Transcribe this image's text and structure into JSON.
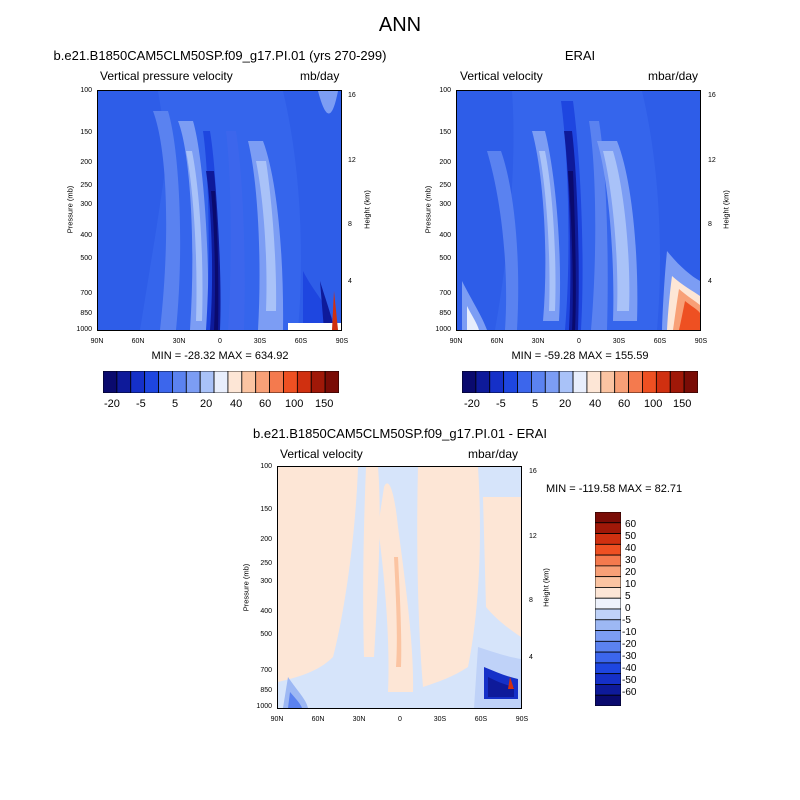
{
  "page": {
    "title": "ANN"
  },
  "colors": {
    "left_palette": [
      "#0a0a6e",
      "#0e1a9a",
      "#1530c8",
      "#1e46e0",
      "#3c66ec",
      "#5b82f0",
      "#7c9df4",
      "#a9c2f8",
      "#e8eefc",
      "#fde6d6",
      "#fbc4a2",
      "#f8a077",
      "#f47a4e",
      "#ee5022",
      "#d03010",
      "#a01808",
      "#7a0c06"
    ],
    "diff_palette": [
      "#7a0c06",
      "#a01808",
      "#d03010",
      "#ee5022",
      "#f47a4e",
      "#f8a077",
      "#fbc4a2",
      "#fde6d6",
      "#eef2fc",
      "#bfd2f8",
      "#9db8f4",
      "#7c9df4",
      "#5b82f0",
      "#3c66ec",
      "#1e46e0",
      "#1530c8",
      "#0e1a9a",
      "#0a0a6e"
    ]
  },
  "panels": [
    {
      "id": "model",
      "title": "b.e21.B1850CAM5CLM50SP.f09_g17.PI.01 (yrs 270-299)",
      "left_label": "Vertical pressure velocity",
      "right_label": "mb/day",
      "ylabel": "Pressure (mb)",
      "hlabel": "Height (km)",
      "pressure_ticks": [
        "100",
        "150",
        "200",
        "250",
        "300",
        "400",
        "500",
        "700",
        "850",
        "1000"
      ],
      "height_ticks": [
        "16",
        "12",
        "8",
        "4"
      ],
      "lat_ticks": [
        "90N",
        "60N",
        "30N",
        "0",
        "30S",
        "60S",
        "90S"
      ],
      "stats": "MIN = -28.32  MAX = 634.92",
      "colorbar_labels": [
        "-20",
        "-5",
        "5",
        "20",
        "40",
        "60",
        "100",
        "150"
      ]
    },
    {
      "id": "obs",
      "title": "ERAI",
      "left_label": "Vertical velocity",
      "right_label": "mbar/day",
      "ylabel": "Pressure (mb)",
      "hlabel": "Height (km)",
      "pressure_ticks": [
        "100",
        "150",
        "200",
        "250",
        "300",
        "400",
        "500",
        "700",
        "850",
        "1000"
      ],
      "height_ticks": [
        "16",
        "12",
        "8",
        "4"
      ],
      "lat_ticks": [
        "90N",
        "60N",
        "30N",
        "0",
        "30S",
        "60S",
        "90S"
      ],
      "stats": "MIN = -59.28  MAX = 155.59",
      "colorbar_labels": [
        "-20",
        "-5",
        "5",
        "20",
        "40",
        "60",
        "100",
        "150"
      ]
    },
    {
      "id": "diff",
      "title": "b.e21.B1850CAM5CLM50SP.f09_g17.PI.01 - ERAI",
      "left_label": "Vertical velocity",
      "right_label": "mbar/day",
      "ylabel": "Pressure (mb)",
      "hlabel": "Height (km)",
      "pressure_ticks": [
        "100",
        "150",
        "200",
        "250",
        "300",
        "400",
        "500",
        "700",
        "850",
        "1000"
      ],
      "height_ticks": [
        "16",
        "12",
        "8",
        "4"
      ],
      "lat_ticks": [
        "90N",
        "60N",
        "30N",
        "0",
        "30S",
        "60S",
        "90S"
      ],
      "stats": "MIN = -119.58  MAX =  82.71",
      "colorbar_labels": [
        "60",
        "50",
        "40",
        "30",
        "20",
        "10",
        "5",
        "0",
        "-5",
        "-10",
        "-20",
        "-30",
        "-40",
        "-50",
        "-60"
      ]
    }
  ],
  "chart_data": [
    {
      "type": "heatmap",
      "title": "b.e21.B1850CAM5CLM50SP.f09_g17.PI.01 (yrs 270-299)",
      "variable": "Vertical pressure velocity",
      "units": "mb/day",
      "xlabel": "",
      "ylabel": "Pressure (mb)",
      "y2label": "Height (km)",
      "x_ticks": [
        "90N",
        "60N",
        "30N",
        "0",
        "30S",
        "60S",
        "90S"
      ],
      "y_ticks": [
        100,
        150,
        200,
        250,
        300,
        400,
        500,
        700,
        850,
        1000
      ],
      "y2_ticks": [
        16,
        12,
        8,
        4
      ],
      "min": -28.32,
      "max": 634.92,
      "contour_levels": [
        -20,
        -5,
        5,
        20,
        40,
        60,
        100,
        150
      ]
    },
    {
      "type": "heatmap",
      "title": "ERAI",
      "variable": "Vertical velocity",
      "units": "mbar/day",
      "xlabel": "",
      "ylabel": "Pressure (mb)",
      "y2label": "Height (km)",
      "x_ticks": [
        "90N",
        "60N",
        "30N",
        "0",
        "30S",
        "60S",
        "90S"
      ],
      "y_ticks": [
        100,
        150,
        200,
        250,
        300,
        400,
        500,
        700,
        850,
        1000
      ],
      "y2_ticks": [
        16,
        12,
        8,
        4
      ],
      "min": -59.28,
      "max": 155.59,
      "contour_levels": [
        -20,
        -5,
        5,
        20,
        40,
        60,
        100,
        150
      ]
    },
    {
      "type": "heatmap",
      "title": "b.e21.B1850CAM5CLM50SP.f09_g17.PI.01 - ERAI",
      "variable": "Vertical velocity",
      "units": "mbar/day",
      "xlabel": "",
      "ylabel": "Pressure (mb)",
      "y2label": "Height (km)",
      "x_ticks": [
        "90N",
        "60N",
        "30N",
        "0",
        "30S",
        "60S",
        "90S"
      ],
      "y_ticks": [
        100,
        150,
        200,
        250,
        300,
        400,
        500,
        700,
        850,
        1000
      ],
      "y2_ticks": [
        16,
        12,
        8,
        4
      ],
      "min": -119.58,
      "max": 82.71,
      "contour_levels": [
        60,
        50,
        40,
        30,
        20,
        10,
        5,
        0,
        -5,
        -10,
        -20,
        -30,
        -40,
        -50,
        -60
      ]
    }
  ]
}
